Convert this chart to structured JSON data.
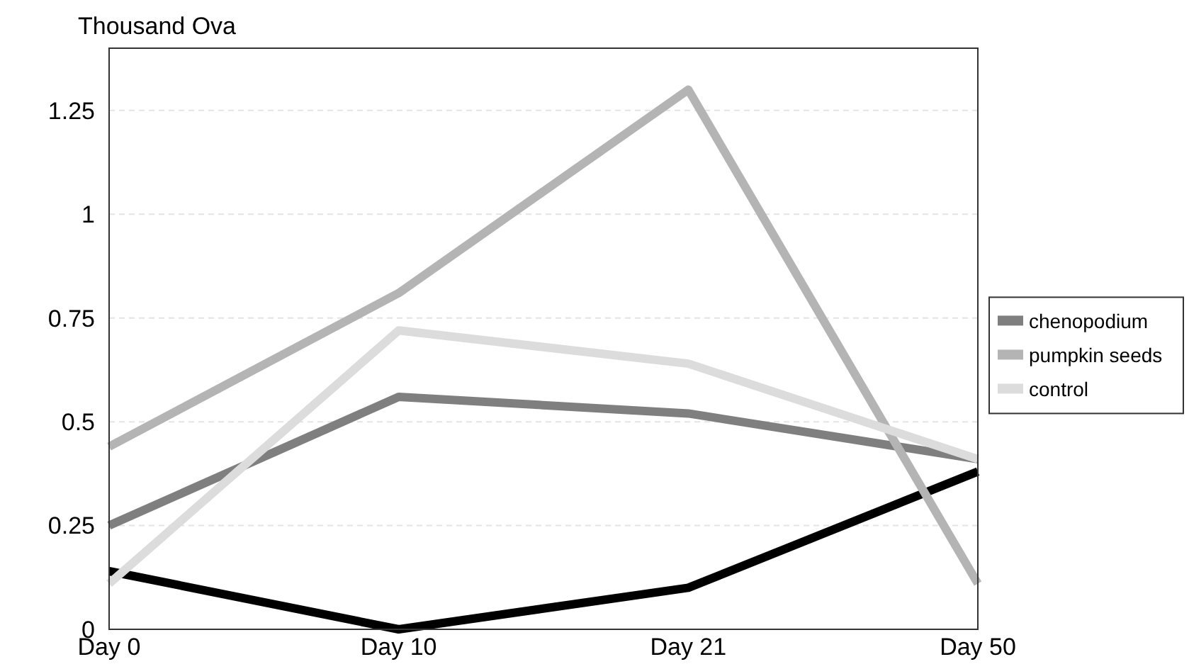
{
  "chart_data": {
    "type": "line",
    "ylabel": "Thousand Ova",
    "categories": [
      "Day 0",
      "Day 10",
      "Day 21",
      "Day 50"
    ],
    "ylim": [
      0,
      1.4
    ],
    "yticks": [
      0,
      0.25,
      0.5,
      0.75,
      1,
      1.25
    ],
    "grid": "y",
    "legend": "right",
    "line_style": "solid",
    "marker": "none",
    "series": [
      {
        "color": "#000000",
        "values": [
          0.14,
          0,
          0.1,
          0.38
        ]
      },
      {
        "name": "chenopodium",
        "color": "#7f7f7f",
        "values": [
          0.25,
          0.56,
          0.52,
          0.41
        ]
      },
      {
        "name": "pumpkin seeds",
        "color": "#b4b4b4",
        "values": [
          0.44,
          0.81,
          1.3,
          0.11
        ]
      },
      {
        "name": "control",
        "color": "#dcdcdc",
        "values": [
          0.11,
          0.72,
          0.64,
          0.41
        ]
      }
    ]
  }
}
